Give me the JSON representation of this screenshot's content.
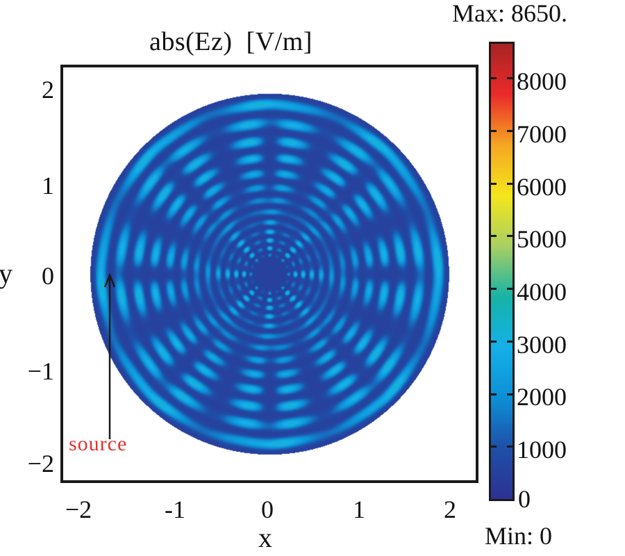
{
  "chart_data": {
    "type": "heatmap",
    "title": "abs(Ez)  [V/m]",
    "xlabel": "x",
    "ylabel": "y",
    "xlim": [
      -2.3,
      2.3
    ],
    "ylim": [
      -2.2,
      2.2
    ],
    "x_ticks": [
      "−2",
      "-1",
      "0",
      "1",
      "2"
    ],
    "x_tick_values": [
      -2,
      -1,
      0,
      1,
      2
    ],
    "y_ticks": [
      "2",
      "1",
      "0",
      "−1",
      "−2"
    ],
    "y_tick_values": [
      2,
      1,
      0,
      -1,
      -2
    ],
    "domain_shape": "disk",
    "domain_radius": 2,
    "symmetry_order": 8,
    "colorbar": {
      "colormap": "jet-like",
      "range": [
        0,
        8650
      ],
      "ticks": [
        "8000",
        "7000",
        "6000",
        "5000",
        "4000",
        "3000",
        "2000",
        "1000",
        "0"
      ],
      "tick_values": [
        8000,
        7000,
        6000,
        5000,
        4000,
        3000,
        2000,
        1000,
        0
      ],
      "max_label": "Max: 8650.",
      "min_label": "Min: 0",
      "colors": [
        "#2e3192",
        "#1f4fa8",
        "#0d8fd6",
        "#16b0e8",
        "#17b3a6",
        "#a9cf62",
        "#f4e61c",
        "#f5a623",
        "#ea2a2a",
        "#a82424"
      ]
    },
    "annotations": [
      {
        "text": "source",
        "color": "#e8302a",
        "points_to": [
          -1.7,
          0.0
        ]
      }
    ]
  }
}
